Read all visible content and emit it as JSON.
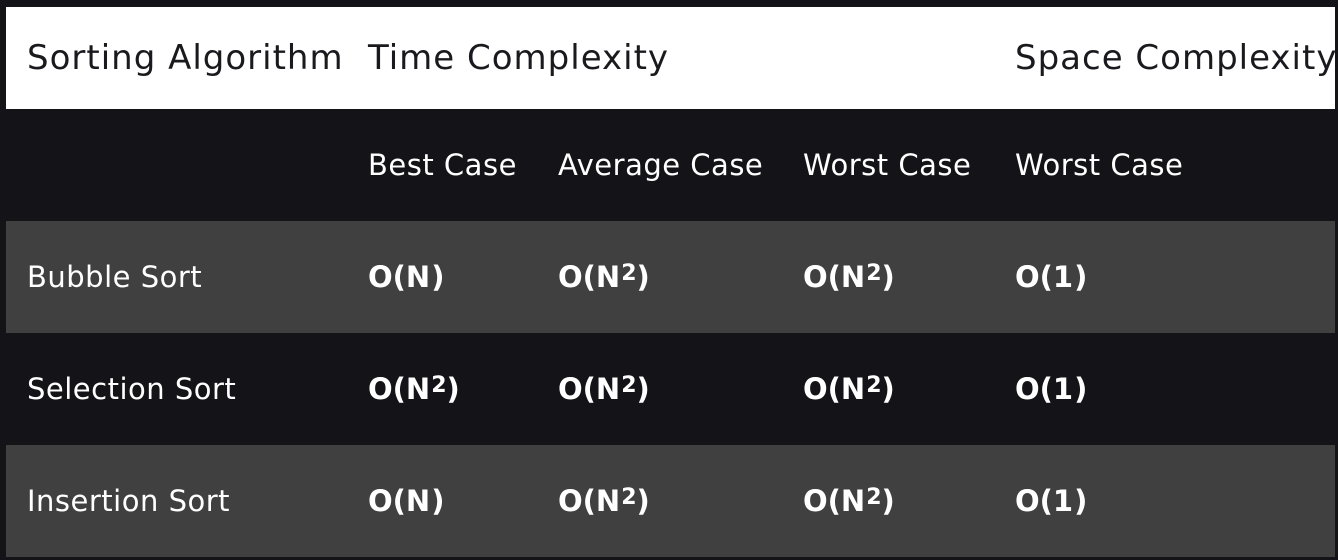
{
  "header": {
    "algorithm": "Sorting Algorithm",
    "time": "Time Complexity",
    "space": "Space Complexity"
  },
  "subheader": {
    "best": "Best Case",
    "average": "Average Case",
    "worst": "Worst Case",
    "space_worst": "Worst Case"
  },
  "rows": [
    {
      "name": "Bubble Sort",
      "best": {
        "base": "O(N",
        "exp": "",
        "close": ")"
      },
      "average": {
        "base": "O(N",
        "exp": "2",
        "close": ")"
      },
      "worst": {
        "base": "O(N",
        "exp": "2",
        "close": ")"
      },
      "space": {
        "base": "O(1",
        "exp": "",
        "close": ")"
      }
    },
    {
      "name": "Selection Sort",
      "best": {
        "base": "O(N",
        "exp": "2",
        "close": ")"
      },
      "average": {
        "base": "O(N",
        "exp": "2",
        "close": ")"
      },
      "worst": {
        "base": "O(N",
        "exp": "2",
        "close": ")"
      },
      "space": {
        "base": "O(1",
        "exp": "",
        "close": ")"
      }
    },
    {
      "name": "Insertion Sort",
      "best": {
        "base": "O(N",
        "exp": "",
        "close": ")"
      },
      "average": {
        "base": "O(N",
        "exp": "2",
        "close": ")"
      },
      "worst": {
        "base": "O(N",
        "exp": "2",
        "close": ")"
      },
      "space": {
        "base": "O(1",
        "exp": "",
        "close": ")"
      }
    }
  ]
}
